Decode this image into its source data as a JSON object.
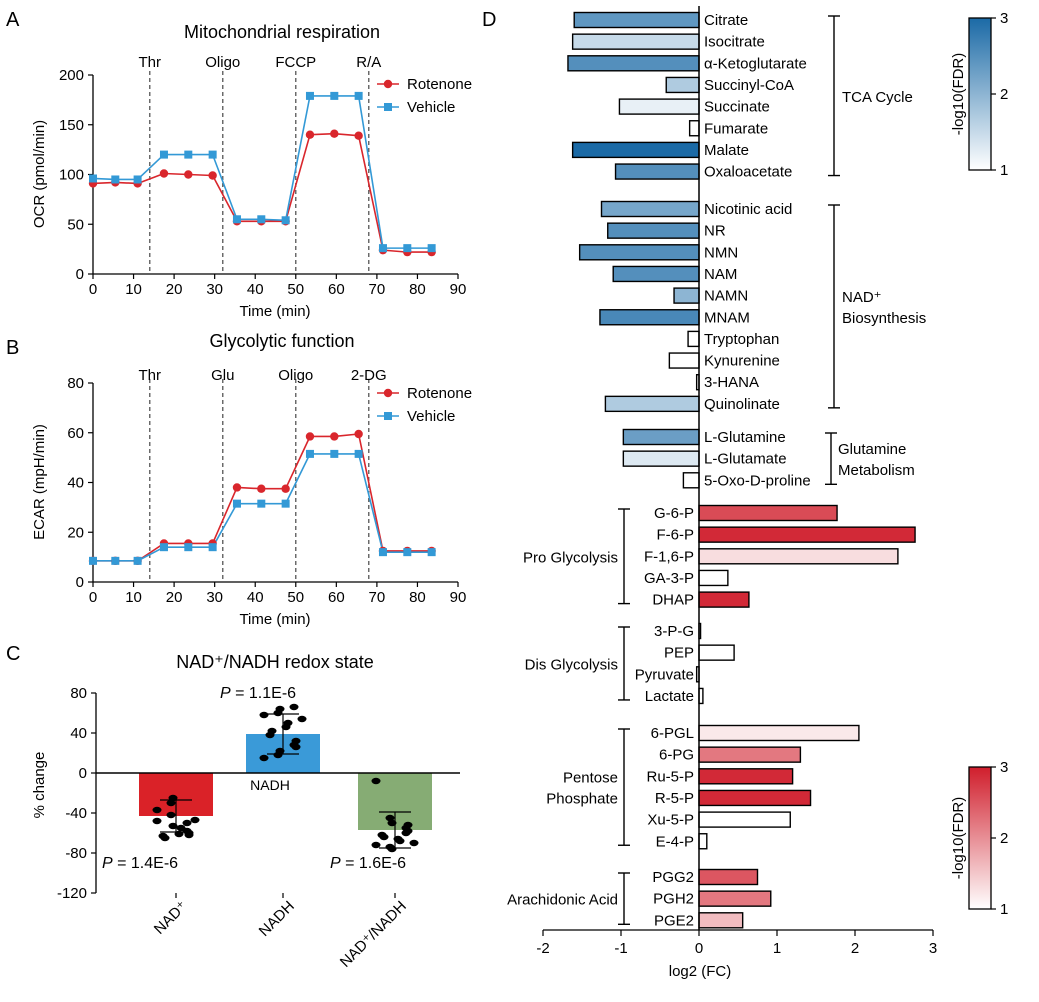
{
  "panel_labels": {
    "A": "A",
    "B": "B",
    "C": "C",
    "D": "D"
  },
  "colors": {
    "rotenone": "#d9262c",
    "vehicle": "#3399d6",
    "bar_nad": "#da2228",
    "bar_nadh": "#3a9ad8",
    "bar_ratio": "#86ac74",
    "blue_low": "#ffffff",
    "blue_high": "#1b6aa6",
    "red_low": "#ffffff",
    "red_high": "#d01e2c"
  },
  "chart_data": [
    {
      "id": "A",
      "type": "line",
      "title": "Mitochondrial respiration",
      "xlabel": "Time (min)",
      "ylabel": "OCR (pmol/min)",
      "xlim": [
        0,
        90
      ],
      "ylim": [
        0,
        200
      ],
      "xticks": [
        "0",
        "10",
        "20",
        "30",
        "40",
        "50",
        "60",
        "70",
        "80",
        "90"
      ],
      "yticks": [
        "0",
        "50",
        "100",
        "150",
        "200"
      ],
      "legend": "top-right",
      "injections": [
        {
          "label": "Thr",
          "x": 14
        },
        {
          "label": "Oligo",
          "x": 32
        },
        {
          "label": "FCCP",
          "x": 50
        },
        {
          "label": "R/A",
          "x": 68
        }
      ],
      "series": [
        {
          "name": "Rotenone",
          "marker": "circle",
          "x": [
            0,
            5.5,
            11,
            17.5,
            23.5,
            29.5,
            35.5,
            41.5,
            47.5,
            53.5,
            59.5,
            65.5,
            71.5,
            77.5,
            83.5
          ],
          "y": [
            91,
            92,
            91,
            101,
            100,
            99,
            53,
            53,
            53,
            140,
            141,
            139,
            24,
            22,
            22
          ]
        },
        {
          "name": "Vehicle",
          "marker": "square",
          "x": [
            0,
            5.5,
            11,
            17.5,
            23.5,
            29.5,
            35.5,
            41.5,
            47.5,
            53.5,
            59.5,
            65.5,
            71.5,
            77.5,
            83.5
          ],
          "y": [
            96,
            95,
            95,
            120,
            120,
            120,
            55,
            55,
            54,
            179,
            179,
            179,
            26,
            26,
            26
          ]
        }
      ]
    },
    {
      "id": "B",
      "type": "line",
      "title": "Glycolytic function",
      "xlabel": "Time (min)",
      "ylabel": "ECAR (mpH/min)",
      "xlim": [
        0,
        90
      ],
      "ylim": [
        0,
        80
      ],
      "xticks": [
        "0",
        "10",
        "20",
        "30",
        "40",
        "50",
        "60",
        "70",
        "80",
        "90"
      ],
      "yticks": [
        "0",
        "20",
        "40",
        "60",
        "80"
      ],
      "legend": "top-right",
      "injections": [
        {
          "label": "Thr",
          "x": 14
        },
        {
          "label": "Glu",
          "x": 32
        },
        {
          "label": "Oligo",
          "x": 50
        },
        {
          "label": "2-DG",
          "x": 68
        }
      ],
      "series": [
        {
          "name": "Rotenone",
          "marker": "circle",
          "x": [
            0,
            5.5,
            11,
            17.5,
            23.5,
            29.5,
            35.5,
            41.5,
            47.5,
            53.5,
            59.5,
            65.5,
            71.5,
            77.5,
            83.5
          ],
          "y": [
            8.5,
            8.5,
            8.5,
            15.5,
            15.5,
            15.5,
            38,
            37.5,
            37.5,
            58.5,
            58.5,
            59.5,
            12.5,
            12.5,
            12.5
          ]
        },
        {
          "name": "Vehicle",
          "marker": "square",
          "x": [
            0,
            5.5,
            11,
            17.5,
            23.5,
            29.5,
            35.5,
            41.5,
            47.5,
            53.5,
            59.5,
            65.5,
            71.5,
            77.5,
            83.5
          ],
          "y": [
            8.5,
            8.5,
            8.5,
            14,
            14,
            14,
            31.5,
            31.5,
            31.5,
            51.5,
            51.5,
            51.5,
            12,
            12,
            12
          ]
        }
      ]
    },
    {
      "id": "C",
      "type": "bar",
      "title": "NAD⁺/NADH redox state",
      "ylabel": "% change",
      "ylim": [
        -120,
        80
      ],
      "yticks": [
        "80",
        "40",
        "0",
        "-40",
        "-80",
        "-120"
      ],
      "categories": [
        "NAD⁺",
        "NADH",
        "NAD⁺/NADH"
      ],
      "values": [
        -43,
        39,
        -57
      ],
      "errors": [
        16,
        20,
        18
      ],
      "bar_label_inside": "NADH",
      "pvalues": [
        "P = 1.4E-6",
        "P = 1.1E-6",
        "P = 1.6E-6"
      ],
      "points": [
        [
          -48,
          -42,
          -53,
          -58,
          -60,
          -63,
          -65,
          -61,
          -55,
          -47,
          -37,
          -30,
          -25,
          -50,
          -62
        ],
        [
          15,
          18,
          22,
          28,
          32,
          38,
          42,
          46,
          50,
          54,
          58,
          60,
          64,
          66,
          26
        ],
        [
          -8,
          -45,
          -50,
          -55,
          -58,
          -62,
          -64,
          -66,
          -68,
          -70,
          -72,
          -74,
          -76,
          -60,
          -52
        ]
      ]
    },
    {
      "id": "D",
      "type": "bar",
      "orientation": "horizontal",
      "xlabel": "log2 (FC)",
      "xlim": [
        -2,
        3
      ],
      "xticks": [
        "-2",
        "-1",
        "0",
        "1",
        "2",
        "3"
      ],
      "colorbars": [
        {
          "label": "-log10(FDR)",
          "ticks": [
            "3",
            "2",
            "1"
          ],
          "scheme": "blue"
        },
        {
          "label": "-log10(FDR)",
          "ticks": [
            "3",
            "2",
            "1"
          ],
          "scheme": "red"
        }
      ],
      "groups": [
        {
          "name": "TCA Cycle",
          "name_lines": [
            "TCA Cycle"
          ],
          "scheme": "blue",
          "label_side": "right",
          "items": [
            {
              "name": "Citrate",
              "value": -1.6,
              "fdr": 2.4
            },
            {
              "name": "Isocitrate",
              "value": -1.62,
              "fdr": 1.5
            },
            {
              "name": "α-Ketoglutarate",
              "value": -1.68,
              "fdr": 2.5
            },
            {
              "name": "Succinyl-CoA",
              "value": -0.42,
              "fdr": 1.7
            },
            {
              "name": "Succinate",
              "value": -1.02,
              "fdr": 1.2
            },
            {
              "name": "Fumarate",
              "value": -0.12,
              "fdr": 1.0
            },
            {
              "name": "Malate",
              "value": -1.62,
              "fdr": 3.0
            },
            {
              "name": "Oxaloacetate",
              "value": -1.07,
              "fdr": 2.5
            }
          ]
        },
        {
          "name": "NAD⁺ Biosynthesis",
          "name_lines": [
            "NAD⁺",
            "Biosynthesis"
          ],
          "scheme": "blue",
          "label_side": "right",
          "items": [
            {
              "name": "Nicotinic acid",
              "value": -1.25,
              "fdr": 2.2
            },
            {
              "name": "NR",
              "value": -1.17,
              "fdr": 2.5
            },
            {
              "name": "NMN",
              "value": -1.53,
              "fdr": 2.5
            },
            {
              "name": "NAM",
              "value": -1.1,
              "fdr": 2.5
            },
            {
              "name": "NAMN",
              "value": -0.32,
              "fdr": 2.0
            },
            {
              "name": "MNAM",
              "value": -1.27,
              "fdr": 2.6
            },
            {
              "name": "Tryptophan",
              "value": -0.14,
              "fdr": 1.0
            },
            {
              "name": "Kynurenine",
              "value": -0.38,
              "fdr": 1.0
            },
            {
              "name": "3-HANA",
              "value": -0.03,
              "fdr": 1.0
            },
            {
              "name": "Quinolinate",
              "value": -1.2,
              "fdr": 1.7
            }
          ]
        },
        {
          "name": "Glutamine Metabolism",
          "name_lines": [
            "Glutamine",
            "Metabolism"
          ],
          "scheme": "blue",
          "label_side": "right",
          "items": [
            {
              "name": "L-Glutamine",
              "value": -0.97,
              "fdr": 2.3
            },
            {
              "name": "L-Glutamate",
              "value": -0.97,
              "fdr": 1.3
            },
            {
              "name": "5-Oxo-D-proline",
              "value": -0.2,
              "fdr": 1.0
            }
          ]
        },
        {
          "name": "Pro Glycolysis",
          "name_lines": [
            "Pro Glycolysis"
          ],
          "scheme": "red",
          "label_side": "left",
          "items": [
            {
              "name": "G-6-P",
              "value": 1.77,
              "fdr": 2.6
            },
            {
              "name": "F-6-P",
              "value": 2.77,
              "fdr": 2.9
            },
            {
              "name": "F-1,6-P",
              "value": 2.55,
              "fdr": 1.3
            },
            {
              "name": "GA-3-P",
              "value": 0.37,
              "fdr": 1.0
            },
            {
              "name": "DHAP",
              "value": 0.64,
              "fdr": 2.9
            }
          ]
        },
        {
          "name": "Dis Glycolysis",
          "name_lines": [
            "Dis Glycolysis"
          ],
          "scheme": "red",
          "label_side": "left",
          "items": [
            {
              "name": "3-P-G",
              "value": 0.02,
              "fdr": 1.0
            },
            {
              "name": "PEP",
              "value": 0.45,
              "fdr": 1.0
            },
            {
              "name": "Pyruvate",
              "value": -0.03,
              "fdr": 1.0
            },
            {
              "name": "Lactate",
              "value": 0.05,
              "fdr": 1.0
            }
          ]
        },
        {
          "name": "Pentose Phosphate",
          "name_lines": [
            "Pentose",
            "Phosphate"
          ],
          "scheme": "red",
          "label_side": "left",
          "items": [
            {
              "name": "6-PGL",
              "value": 2.05,
              "fdr": 1.2
            },
            {
              "name": "6-PG",
              "value": 1.3,
              "fdr": 2.2
            },
            {
              "name": "Ru-5-P",
              "value": 1.2,
              "fdr": 2.9
            },
            {
              "name": "R-5-P",
              "value": 1.43,
              "fdr": 2.9
            },
            {
              "name": "Xu-5-P",
              "value": 1.17,
              "fdr": 1.0
            },
            {
              "name": "E-4-P",
              "value": 0.1,
              "fdr": 1.0
            }
          ]
        },
        {
          "name": "Arachidonic Acid",
          "name_lines": [
            "Arachidonic Acid"
          ],
          "scheme": "red",
          "label_side": "left",
          "items": [
            {
              "name": "PGG2",
              "value": 0.75,
              "fdr": 2.5
            },
            {
              "name": "PGH2",
              "value": 0.92,
              "fdr": 2.2
            },
            {
              "name": "PGE2",
              "value": 0.56,
              "fdr": 1.6
            }
          ]
        }
      ]
    }
  ]
}
